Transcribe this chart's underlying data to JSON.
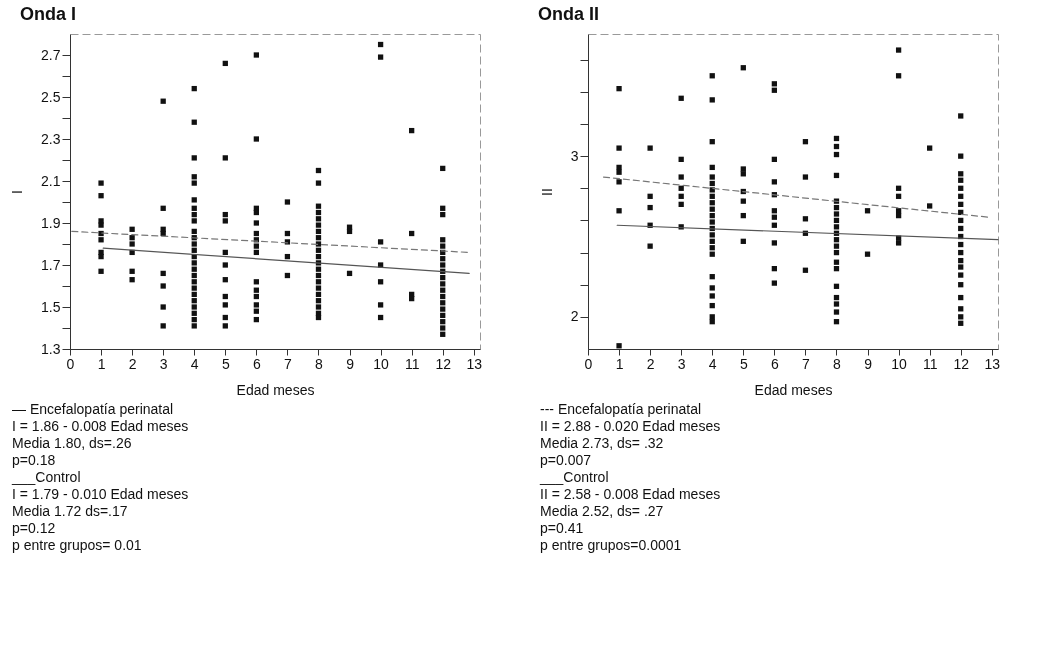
{
  "chart_data": [
    {
      "type": "scatter",
      "title": "Onda I",
      "xlabel": "Edad meses",
      "ylabel": "I",
      "xlim": [
        0,
        13.2
      ],
      "ylim": [
        1.3,
        2.8
      ],
      "xticks": [
        0,
        1,
        2,
        3,
        4,
        5,
        6,
        7,
        8,
        9,
        10,
        11,
        12,
        13
      ],
      "yticks": [
        1.3,
        {
          "value": 1.4,
          "label": null
        },
        1.5,
        {
          "value": 1.6,
          "label": null
        },
        1.7,
        {
          "value": 1.8,
          "label": null
        },
        1.9,
        {
          "value": 2.0,
          "label": null
        },
        2.1,
        {
          "value": 2.2,
          "label": null
        },
        2.3,
        {
          "value": 2.4,
          "label": null
        },
        2.5,
        {
          "value": 2.6,
          "label": null
        },
        2.7
      ],
      "series": [
        {
          "type": "scatter",
          "color": "#111111",
          "marker": "square",
          "x": [
            1,
            1,
            1,
            1,
            1,
            1,
            1,
            1,
            1,
            2,
            2,
            2,
            2,
            2,
            2,
            3,
            3,
            3,
            3,
            3,
            3,
            3,
            3,
            4,
            4,
            4,
            4,
            4,
            4,
            4,
            4,
            4,
            4,
            4,
            4,
            4,
            4,
            4,
            4,
            4,
            4,
            4,
            4,
            4,
            4,
            4,
            4,
            4,
            5,
            5,
            5,
            5,
            5,
            5,
            5,
            5,
            5,
            5,
            5,
            6,
            6,
            6,
            6,
            6,
            6,
            6,
            6,
            6,
            6,
            6,
            6,
            6,
            6,
            6,
            7,
            7,
            7,
            7,
            7,
            8,
            8,
            8,
            8,
            8,
            8,
            8,
            8,
            8,
            8,
            8,
            8,
            8,
            8,
            8,
            8,
            8,
            8,
            8,
            8,
            8,
            9,
            9,
            9,
            10,
            10,
            10,
            10,
            10,
            10,
            10,
            11,
            11,
            11,
            11,
            12,
            12,
            12,
            12,
            12,
            12,
            12,
            12,
            12,
            12,
            12,
            12,
            12,
            12,
            12,
            12,
            12,
            12,
            12
          ],
          "values": [
            2.09,
            2.03,
            1.91,
            1.89,
            1.85,
            1.82,
            1.76,
            1.74,
            1.67,
            1.87,
            1.83,
            1.8,
            1.76,
            1.67,
            1.63,
            2.48,
            1.97,
            1.87,
            1.85,
            1.66,
            1.6,
            1.5,
            1.41,
            2.54,
            2.38,
            2.21,
            2.12,
            2.09,
            2.01,
            1.97,
            1.94,
            1.91,
            1.86,
            1.83,
            1.8,
            1.77,
            1.74,
            1.71,
            1.68,
            1.65,
            1.62,
            1.59,
            1.56,
            1.53,
            1.5,
            1.47,
            1.44,
            1.41,
            2.66,
            2.21,
            1.94,
            1.91,
            1.76,
            1.7,
            1.63,
            1.55,
            1.51,
            1.45,
            1.41,
            2.7,
            2.3,
            1.97,
            1.95,
            1.9,
            1.85,
            1.82,
            1.79,
            1.76,
            1.62,
            1.58,
            1.55,
            1.51,
            1.48,
            1.44,
            2.0,
            1.85,
            1.81,
            1.74,
            1.65,
            2.15,
            2.09,
            1.98,
            1.95,
            1.92,
            1.89,
            1.86,
            1.83,
            1.8,
            1.77,
            1.74,
            1.71,
            1.68,
            1.65,
            1.62,
            1.59,
            1.56,
            1.53,
            1.5,
            1.47,
            1.45,
            1.88,
            1.86,
            1.66,
            2.75,
            2.69,
            1.81,
            1.7,
            1.62,
            1.51,
            1.45,
            2.34,
            1.85,
            1.56,
            1.54,
            2.16,
            1.97,
            1.94,
            1.82,
            1.79,
            1.76,
            1.73,
            1.7,
            1.67,
            1.64,
            1.61,
            1.58,
            1.55,
            1.52,
            1.49,
            1.46,
            1.43,
            1.4,
            1.37
          ]
        },
        {
          "type": "line",
          "color": "#777777",
          "line_style": "dashed",
          "x": [
            0.06,
            12.85
          ],
          "values": [
            1.86,
            1.76
          ]
        },
        {
          "type": "line",
          "color": "#555555",
          "line_style": "solid",
          "x": [
            1.07,
            12.85
          ],
          "values": [
            1.78,
            1.66
          ]
        }
      ],
      "annotations": [
        "— Encefalopatía perinatal",
        "I = 1.86 - 0.008 Edad meses",
        "Media 1.80, ds=.26",
        "p=0.18",
        "___Control",
        "I = 1.79 - 0.010 Edad meses",
        "Media 1.72 ds=.17",
        "p=0.12",
        "p entre grupos= 0.01"
      ]
    },
    {
      "type": "scatter",
      "title": "Onda II",
      "xlabel": "Edad meses",
      "ylabel": "II",
      "xlim": [
        0,
        13.2
      ],
      "ylim": [
        1.8,
        3.76
      ],
      "xticks": [
        0,
        1,
        2,
        3,
        4,
        5,
        6,
        7,
        8,
        9,
        10,
        11,
        12,
        13
      ],
      "yticks": [
        2,
        {
          "value": 2.2,
          "label": null
        },
        {
          "value": 2.4,
          "label": null
        },
        {
          "value": 2.6,
          "label": null
        },
        {
          "value": 2.8,
          "label": null
        },
        3,
        {
          "value": 3.2,
          "label": null
        },
        {
          "value": 3.4,
          "label": null
        },
        {
          "value": 3.6,
          "label": null
        }
      ],
      "series": [
        {
          "type": "scatter",
          "color": "#111111",
          "marker": "square",
          "x": [
            1,
            1,
            1,
            1,
            1,
            1,
            1,
            2,
            2,
            2,
            2,
            2,
            3,
            3,
            3,
            3,
            3,
            3,
            3,
            4,
            4,
            4,
            4,
            4,
            4,
            4,
            4,
            4,
            4,
            4,
            4,
            4,
            4,
            4,
            4,
            4,
            4,
            4,
            4,
            4,
            4,
            4,
            5,
            5,
            5,
            5,
            5,
            5,
            5,
            6,
            6,
            6,
            6,
            6,
            6,
            6,
            6,
            6,
            6,
            6,
            7,
            7,
            7,
            7,
            7,
            8,
            8,
            8,
            8,
            8,
            8,
            8,
            8,
            8,
            8,
            8,
            8,
            8,
            8,
            8,
            8,
            8,
            8,
            8,
            8,
            9,
            9,
            10,
            10,
            10,
            10,
            10,
            10,
            10,
            10,
            11,
            11,
            12,
            12,
            12,
            12,
            12,
            12,
            12,
            12,
            12,
            12,
            12,
            12,
            12,
            12,
            12,
            12,
            12,
            12,
            12,
            12,
            12
          ],
          "values": [
            3.42,
            3.05,
            2.93,
            2.9,
            2.84,
            2.66,
            1.82,
            3.05,
            2.75,
            2.68,
            2.57,
            2.44,
            3.36,
            2.98,
            2.87,
            2.8,
            2.75,
            2.7,
            2.56,
            3.5,
            3.35,
            3.09,
            2.93,
            2.87,
            2.83,
            2.79,
            2.75,
            2.71,
            2.67,
            2.63,
            2.59,
            2.55,
            2.51,
            2.47,
            2.43,
            2.39,
            2.25,
            2.18,
            2.13,
            2.07,
            2.0,
            1.97,
            3.55,
            2.92,
            2.89,
            2.78,
            2.72,
            2.63,
            2.47,
            3.45,
            3.41,
            2.98,
            2.84,
            2.76,
            2.66,
            2.62,
            2.57,
            2.46,
            2.3,
            2.21,
            3.09,
            2.87,
            2.61,
            2.52,
            2.29,
            3.11,
            3.06,
            3.01,
            2.88,
            2.72,
            2.68,
            2.64,
            2.6,
            2.56,
            2.52,
            2.48,
            2.44,
            2.4,
            2.34,
            2.3,
            2.19,
            2.12,
            2.08,
            2.03,
            1.97,
            2.66,
            2.39,
            3.66,
            3.5,
            2.8,
            2.75,
            2.66,
            2.63,
            2.49,
            2.46,
            3.05,
            2.69,
            3.25,
            3.0,
            2.89,
            2.85,
            2.8,
            2.75,
            2.7,
            2.65,
            2.6,
            2.55,
            2.5,
            2.45,
            2.4,
            2.35,
            2.31,
            2.26,
            2.2,
            2.12,
            2.05,
            2.0,
            1.96
          ]
        },
        {
          "type": "line",
          "color": "#777777",
          "line_style": "dashed",
          "x": [
            0.5,
            12.9
          ],
          "values": [
            2.87,
            2.62
          ]
        },
        {
          "type": "line",
          "color": "#555555",
          "line_style": "solid",
          "x": [
            0.94,
            13.2
          ],
          "values": [
            2.57,
            2.48
          ]
        }
      ],
      "annotations": [
        "--- Encefalopatía perinatal",
        "II = 2.88 - 0.020 Edad meses",
        "Media 2.73, ds= .32",
        "p=0.007",
        "___Control",
        "II = 2.58 - 0.008 Edad meses",
        "Media 2.52, ds= .27",
        "p=0.41",
        "p entre grupos=0.0001"
      ]
    }
  ]
}
